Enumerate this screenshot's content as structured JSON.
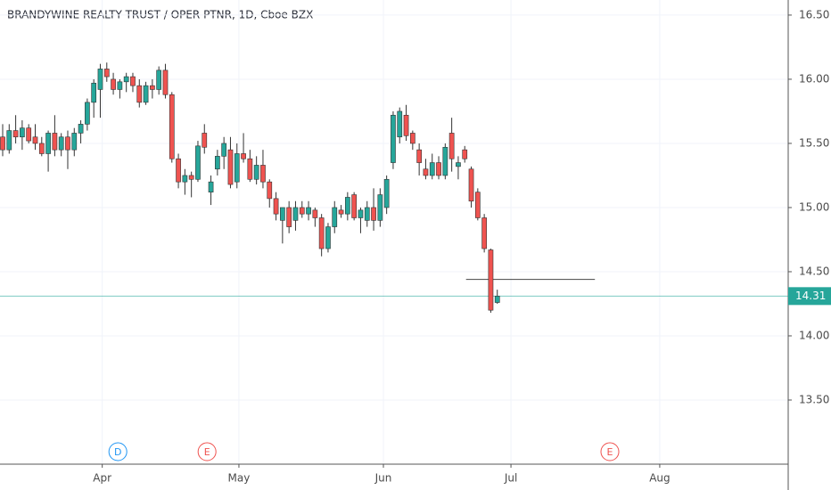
{
  "chart_data": {
    "type": "candlestick",
    "title": "BRANDYWINE REALTY TRUST / OPER PTNR, 1D, Cboe BZX",
    "up_color": "#26a69a",
    "down_color": "#ef5350",
    "open": [
      15.55,
      15.45,
      15.6,
      15.55,
      15.62,
      15.55,
      15.5,
      15.42,
      15.58,
      15.45,
      15.55,
      15.45,
      15.58,
      15.65,
      15.82,
      15.92,
      16.08,
      16.0,
      15.92,
      15.98,
      16.02,
      15.95,
      15.82,
      15.95,
      15.92,
      16.07,
      15.88,
      15.38,
      15.2,
      15.25,
      15.22,
      15.58,
      15.12,
      15.3,
      15.4,
      15.45,
      15.2,
      15.42,
      15.38,
      15.22,
      15.33,
      15.2,
      15.07,
      14.9,
      15.0,
      14.9,
      15.0,
      14.95,
      14.98,
      14.92,
      14.68,
      14.85,
      14.98,
      14.95,
      15.1,
      14.92,
      14.9,
      15.0,
      14.9,
      15.0,
      15.35,
      15.55,
      15.72,
      15.58,
      15.45,
      15.3,
      15.25,
      15.35,
      15.25,
      15.58,
      15.32,
      15.45,
      15.3,
      15.12,
      14.92,
      14.67,
      14.26
    ],
    "high": [
      15.65,
      15.65,
      15.72,
      15.68,
      15.65,
      15.65,
      15.55,
      15.6,
      15.72,
      15.58,
      15.6,
      15.62,
      15.68,
      15.85,
      16.0,
      16.12,
      16.13,
      16.05,
      16.0,
      16.05,
      16.05,
      16.0,
      15.98,
      16.0,
      16.1,
      16.12,
      15.9,
      15.42,
      15.3,
      15.28,
      15.52,
      15.65,
      15.25,
      15.45,
      15.55,
      15.55,
      15.5,
      15.58,
      15.45,
      15.4,
      15.45,
      15.22,
      15.12,
      15.0,
      15.05,
      15.05,
      15.05,
      15.05,
      15.0,
      14.95,
      14.88,
      15.05,
      15.02,
      15.12,
      15.12,
      15.0,
      15.05,
      15.15,
      15.15,
      15.25,
      15.75,
      15.78,
      15.8,
      15.6,
      15.5,
      15.38,
      15.42,
      15.4,
      15.5,
      15.7,
      15.4,
      15.48,
      15.32,
      15.15,
      14.95,
      14.68,
      14.36
    ],
    "low": [
      15.4,
      15.42,
      15.5,
      15.45,
      15.5,
      15.45,
      15.4,
      15.28,
      15.4,
      15.4,
      15.3,
      15.4,
      15.5,
      15.6,
      15.7,
      15.7,
      15.98,
      15.88,
      15.85,
      15.9,
      15.9,
      15.78,
      15.8,
      15.85,
      15.88,
      15.85,
      15.35,
      15.15,
      15.1,
      15.08,
      15.2,
      15.42,
      15.02,
      15.25,
      15.3,
      15.15,
      15.15,
      15.35,
      15.2,
      15.18,
      15.15,
      15.0,
      14.9,
      14.72,
      14.8,
      14.82,
      14.92,
      14.9,
      14.85,
      14.62,
      14.65,
      14.8,
      14.92,
      14.9,
      14.9,
      14.8,
      14.85,
      14.82,
      14.85,
      14.95,
      15.3,
      15.5,
      15.52,
      15.45,
      15.25,
      15.22,
      15.22,
      15.22,
      15.22,
      15.28,
      15.22,
      15.35,
      15.0,
      14.9,
      14.65,
      14.18,
      14.25
    ],
    "close": [
      15.45,
      15.6,
      15.55,
      15.62,
      15.52,
      15.5,
      15.42,
      15.58,
      15.45,
      15.55,
      15.45,
      15.58,
      15.65,
      15.82,
      15.97,
      16.08,
      16.02,
      15.92,
      15.98,
      16.02,
      15.95,
      15.82,
      15.95,
      15.92,
      16.07,
      15.88,
      15.38,
      15.2,
      15.25,
      15.22,
      15.48,
      15.47,
      15.2,
      15.4,
      15.5,
      15.18,
      15.42,
      15.38,
      15.22,
      15.33,
      15.2,
      15.07,
      14.95,
      15.0,
      14.85,
      15.0,
      14.95,
      15.0,
      14.92,
      14.68,
      14.85,
      15.0,
      14.95,
      15.08,
      14.92,
      14.98,
      15.0,
      14.9,
      15.1,
      15.22,
      15.72,
      15.75,
      15.56,
      15.5,
      15.35,
      15.25,
      15.35,
      15.25,
      15.47,
      15.38,
      15.35,
      15.38,
      15.05,
      14.92,
      14.68,
      14.2,
      14.31
    ],
    "xlim": [
      -0.41,
      120.7
    ],
    "xticks": [
      {
        "value": 15.3,
        "label": "Apr"
      },
      {
        "value": 36.3,
        "label": "May"
      },
      {
        "value": 58.5,
        "label": "Jun"
      },
      {
        "value": 78.1,
        "label": "Jul"
      },
      {
        "value": 100.96,
        "label": "Aug"
      }
    ],
    "ylim": [
      13.0,
      16.6176
    ],
    "yticks": [
      {
        "value": 13.5,
        "label": "13.50"
      },
      {
        "value": 14.0,
        "label": "14.00"
      },
      {
        "value": 14.5,
        "label": "14.50"
      },
      {
        "value": 15.0,
        "label": "15.00"
      },
      {
        "value": 15.5,
        "label": "15.50"
      },
      {
        "value": 16.0,
        "label": "16.00"
      },
      {
        "value": 16.5,
        "label": "16.50"
      }
    ],
    "grid": true,
    "last_price": 14.31,
    "last_price_color": "#26a69a",
    "trend_line": {
      "value": 14.44,
      "x": [
        71.2,
        91.0
      ]
    },
    "events": [
      {
        "label": "D",
        "x": 17.7,
        "color": "#2196f3"
      },
      {
        "label": "E",
        "x": 31.4,
        "color": "#ef5350"
      },
      {
        "label": "E",
        "x": 93.3,
        "color": "#ef5350"
      }
    ]
  }
}
